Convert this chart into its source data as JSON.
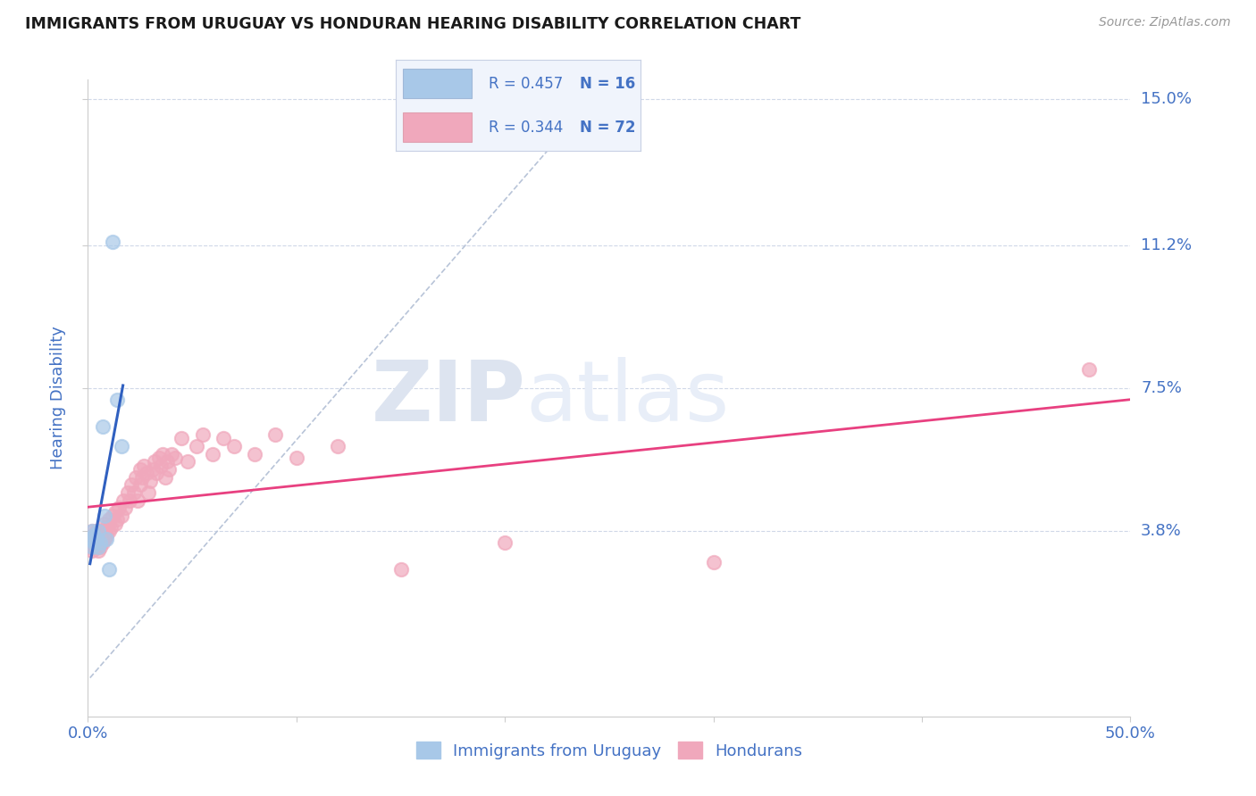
{
  "title": "IMMIGRANTS FROM URUGUAY VS HONDURAN HEARING DISABILITY CORRELATION CHART",
  "source_text": "Source: ZipAtlas.com",
  "ylabel": "Hearing Disability",
  "xlim": [
    0.0,
    0.5
  ],
  "ylim": [
    -0.01,
    0.155
  ],
  "yticks": [
    0.038,
    0.075,
    0.112,
    0.15
  ],
  "ytick_labels": [
    "3.8%",
    "7.5%",
    "11.2%",
    "15.0%"
  ],
  "xticks": [
    0.0,
    0.1,
    0.2,
    0.3,
    0.4,
    0.5
  ],
  "xtick_labels_display": [
    "0.0%",
    "",
    "",
    "",
    "",
    "50.0%"
  ],
  "legend_r1": "R = 0.457",
  "legend_n1": "N = 16",
  "legend_r2": "R = 0.344",
  "legend_n2": "N = 72",
  "series1_label": "Immigrants from Uruguay",
  "series2_label": "Hondurans",
  "series1_color": "#a8c8e8",
  "series2_color": "#f0a8bc",
  "series1_line_color": "#3060c0",
  "series2_line_color": "#e84080",
  "ref_line_color": "#b8c4d8",
  "background_color": "#ffffff",
  "watermark_zip": "ZIP",
  "watermark_atlas": "atlas",
  "title_color": "#1a1a1a",
  "tick_label_color": "#4472c4",
  "series1_x": [
    0.001,
    0.002,
    0.002,
    0.003,
    0.003,
    0.004,
    0.005,
    0.005,
    0.006,
    0.007,
    0.008,
    0.009,
    0.01,
    0.012,
    0.014,
    0.016
  ],
  "series1_y": [
    0.036,
    0.034,
    0.038,
    0.035,
    0.037,
    0.036,
    0.034,
    0.038,
    0.035,
    0.065,
    0.042,
    0.036,
    0.028,
    0.113,
    0.072,
    0.06
  ],
  "series2_x": [
    0.001,
    0.001,
    0.002,
    0.002,
    0.002,
    0.003,
    0.003,
    0.003,
    0.004,
    0.004,
    0.004,
    0.005,
    0.005,
    0.005,
    0.006,
    0.006,
    0.007,
    0.007,
    0.008,
    0.008,
    0.009,
    0.009,
    0.01,
    0.01,
    0.011,
    0.012,
    0.013,
    0.013,
    0.014,
    0.015,
    0.016,
    0.017,
    0.018,
    0.019,
    0.02,
    0.021,
    0.022,
    0.023,
    0.024,
    0.025,
    0.025,
    0.026,
    0.027,
    0.028,
    0.029,
    0.03,
    0.031,
    0.032,
    0.033,
    0.034,
    0.035,
    0.036,
    0.037,
    0.038,
    0.039,
    0.04,
    0.042,
    0.045,
    0.048,
    0.052,
    0.055,
    0.06,
    0.065,
    0.07,
    0.08,
    0.09,
    0.1,
    0.12,
    0.15,
    0.2,
    0.3,
    0.48
  ],
  "series2_y": [
    0.034,
    0.036,
    0.033,
    0.035,
    0.038,
    0.034,
    0.036,
    0.037,
    0.034,
    0.036,
    0.038,
    0.033,
    0.035,
    0.037,
    0.034,
    0.036,
    0.035,
    0.038,
    0.036,
    0.04,
    0.037,
    0.039,
    0.038,
    0.041,
    0.039,
    0.042,
    0.04,
    0.043,
    0.041,
    0.044,
    0.042,
    0.046,
    0.044,
    0.048,
    0.046,
    0.05,
    0.048,
    0.052,
    0.046,
    0.05,
    0.054,
    0.052,
    0.055,
    0.053,
    0.048,
    0.051,
    0.054,
    0.056,
    0.053,
    0.057,
    0.055,
    0.058,
    0.052,
    0.056,
    0.054,
    0.058,
    0.057,
    0.062,
    0.056,
    0.06,
    0.063,
    0.058,
    0.062,
    0.06,
    0.058,
    0.063,
    0.057,
    0.06,
    0.028,
    0.035,
    0.03,
    0.08
  ]
}
